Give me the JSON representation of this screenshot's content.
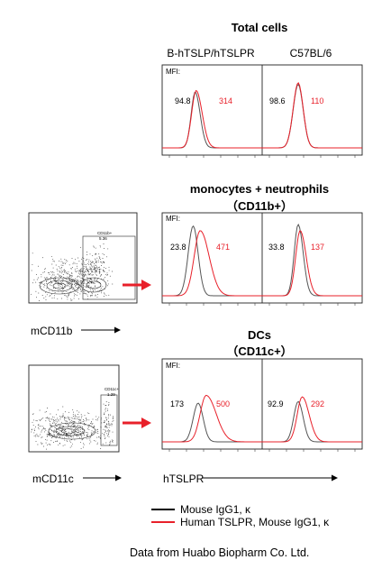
{
  "sections": [
    {
      "title_line1": "Total cells",
      "title_line2": ""
    },
    {
      "title_line1": "monocytes + neutrophils",
      "title_line2": "（CD11b+）"
    },
    {
      "title_line1": "DCs",
      "title_line2": "（CD11c+）"
    }
  ],
  "columns": [
    "B-hTSLP/hTSLPR",
    "C57BL/6"
  ],
  "mfi_label": "MFI:",
  "gating": [
    {
      "gate_name": "CD11b+",
      "gate_value": "5.36",
      "axis_label": "mCD11b"
    },
    {
      "gate_name": "CD11c+",
      "gate_value": "1.29",
      "axis_label": "mCD11c"
    }
  ],
  "x_axis_label": "hTSLPR",
  "legend": [
    {
      "label": "Mouse IgG1, κ",
      "color": "#000000"
    },
    {
      "label": "Human  TSLPR, Mouse IgG1, κ",
      "color": "#e8202a"
    }
  ],
  "footer": "Data from Huabo Biopharm Co. Ltd.",
  "colors": {
    "isotype": "#555555",
    "stain": "#e8202a",
    "arrow": "#e8202a",
    "mfi_red": "#e8202a"
  },
  "chart_data": {
    "type": "histogram",
    "x_axis": "hTSLPR",
    "x_scale": "log",
    "series_names": [
      "Mouse IgG1, κ",
      "Human  TSLPR, Mouse IgG1, κ"
    ],
    "panels": [
      {
        "row": "Total cells",
        "strain": "B-hTSLP/hTSLPR",
        "mfi_isotype": "94.8",
        "mfi_stain": "314"
      },
      {
        "row": "Total cells",
        "strain": "C57BL/6",
        "mfi_isotype": "98.6",
        "mfi_stain": "110"
      },
      {
        "row": "monocytes + neutrophils",
        "strain": "B-hTSLP/hTSLPR",
        "mfi_isotype": "23.8",
        "mfi_stain": "471"
      },
      {
        "row": "monocytes + neutrophils",
        "strain": "C57BL/6",
        "mfi_isotype": "33.8",
        "mfi_stain": "137"
      },
      {
        "row": "DCs",
        "strain": "B-hTSLP/hTSLPR",
        "mfi_isotype": "173",
        "mfi_stain": "500"
      },
      {
        "row": "DCs",
        "strain": "C57BL/6",
        "mfi_isotype": "92.9",
        "mfi_stain": "292"
      }
    ]
  }
}
